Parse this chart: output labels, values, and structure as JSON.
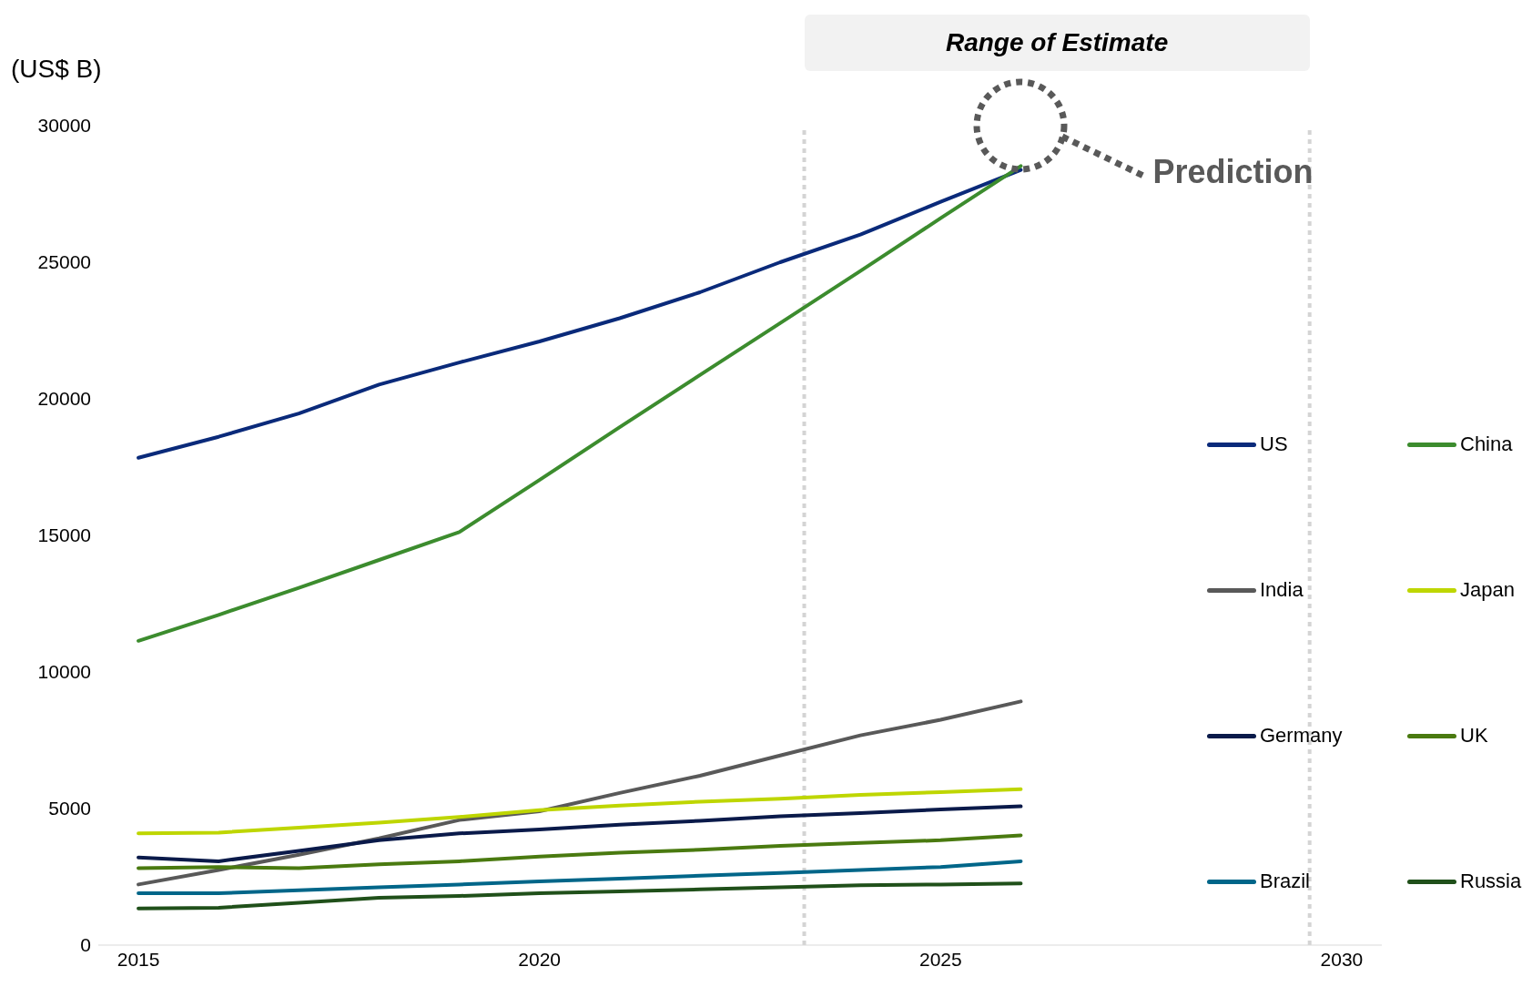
{
  "chart_data": {
    "type": "line",
    "ylabel": "(US$ B)",
    "x": [
      2015,
      2016,
      2017,
      2018,
      2019,
      2020,
      2021,
      2022,
      2023,
      2024,
      2025,
      2026
    ],
    "series": [
      {
        "name": "US",
        "color": "#0a2a7a",
        "values": [
          17840,
          18610,
          19460,
          20520,
          21330,
          22100,
          22950,
          23900,
          25000,
          26010,
          27210,
          28380
        ]
      },
      {
        "name": "China",
        "color": "#3c8c2e",
        "values": [
          11140,
          12090,
          13080,
          14100,
          15120,
          17030,
          18960,
          20870,
          22770,
          24680,
          26610,
          28520
        ]
      },
      {
        "name": "India",
        "color": "#595959",
        "values": [
          2220,
          2750,
          3310,
          3910,
          4580,
          4900,
          5570,
          6200,
          6940,
          7680,
          8250,
          8920
        ]
      },
      {
        "name": "Japan",
        "color": "#bed600",
        "values": [
          4090,
          4120,
          4300,
          4480,
          4690,
          4940,
          5110,
          5250,
          5360,
          5500,
          5600,
          5710
        ]
      },
      {
        "name": "Germany",
        "color": "#0a1a4a",
        "values": [
          3210,
          3070,
          3450,
          3840,
          4090,
          4230,
          4410,
          4550,
          4720,
          4830,
          4970,
          5080
        ]
      },
      {
        "name": "UK",
        "color": "#4a7a10",
        "values": [
          2820,
          2860,
          2820,
          2960,
          3070,
          3240,
          3380,
          3490,
          3630,
          3740,
          3840,
          4020
        ]
      },
      {
        "name": "Brazil",
        "color": "#006689",
        "values": [
          1900,
          1900,
          2010,
          2120,
          2220,
          2330,
          2430,
          2540,
          2640,
          2750,
          2860,
          3070
        ]
      },
      {
        "name": "Russia",
        "color": "#20501a",
        "values": [
          1340,
          1370,
          1550,
          1730,
          1800,
          1900,
          1970,
          2040,
          2120,
          2190,
          2220,
          2260
        ]
      }
    ],
    "xlim": [
      2014.5,
      2030.5
    ],
    "xticks": [
      2015,
      2020,
      2025,
      2030
    ],
    "ylim": [
      0,
      30000
    ],
    "yticks": [
      0,
      5000,
      10000,
      15000,
      20000,
      25000,
      30000
    ],
    "ref_lines": [
      {
        "axis": "x",
        "value": 2023.3,
        "color": "#d4d4d4",
        "line_style": "dotted"
      },
      {
        "axis": "x",
        "value": 2029.6,
        "color": "#d4d4d4",
        "line_style": "dotted"
      }
    ],
    "annotations": [
      "Range of Estimate",
      "Prediction"
    ],
    "legend": "right",
    "grid": false,
    "marker": "none",
    "line_style": "solid"
  }
}
